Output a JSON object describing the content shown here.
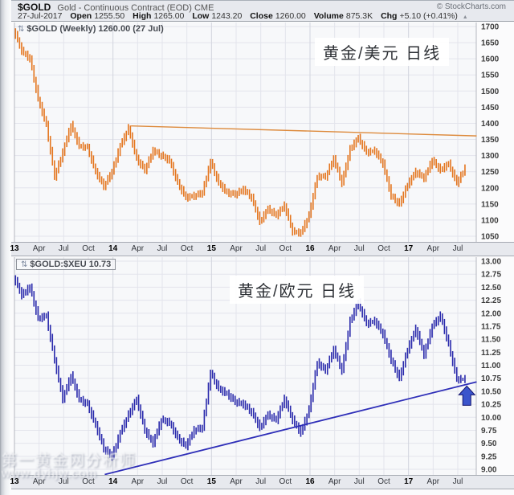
{
  "header": {
    "symbol": "$GOLD",
    "description": "Gold - Continuous Contract (EOD) CME",
    "source": "© StockCharts.com",
    "date": "27-Jul-2017",
    "fields": [
      {
        "label": "Open",
        "value": "1255.50"
      },
      {
        "label": "High",
        "value": "1265.00"
      },
      {
        "label": "Low",
        "value": "1243.20"
      },
      {
        "label": "Close",
        "value": "1260.00"
      },
      {
        "label": "Volume",
        "value": "875.3K"
      },
      {
        "label": "Chg",
        "value": "+5.10 (+0.41%)"
      }
    ],
    "change_direction_icon": "▲"
  },
  "x_axis_labels": [
    "13",
    "Apr",
    "Jul",
    "Oct",
    "14",
    "Apr",
    "Jul",
    "Oct",
    "15",
    "Apr",
    "Jul",
    "Oct",
    "16",
    "Apr",
    "Jul",
    "Oct",
    "17",
    "Apr",
    "Jul"
  ],
  "watermark": {
    "line1": "第一黄金网分析师",
    "line2": "www.dyhjw.com"
  },
  "chart_data": [
    {
      "type": "bar",
      "name": "gold-usd-weekly",
      "label": "$GOLD (Weekly) 1260.00 (27 Jul)",
      "label_icon": "⇅",
      "annotation": "黄金/美元  日线",
      "color": "#e4761f",
      "ylim": [
        1050,
        1700
      ],
      "ystep": 50,
      "decimals": 0,
      "bar_extend": 13,
      "x_start": "2013-01",
      "x_interval": "monthly (approx, read from weekly bars)",
      "monthly_values": [
        1690,
        1625,
        1600,
        1475,
        1395,
        1235,
        1310,
        1395,
        1330,
        1325,
        1250,
        1205,
        1250,
        1330,
        1385,
        1290,
        1255,
        1315,
        1300,
        1285,
        1215,
        1170,
        1175,
        1185,
        1280,
        1215,
        1185,
        1180,
        1195,
        1170,
        1095,
        1135,
        1115,
        1145,
        1065,
        1060,
        1115,
        1235,
        1235,
        1290,
        1215,
        1320,
        1355,
        1310,
        1315,
        1275,
        1175,
        1150,
        1210,
        1250,
        1230,
        1285,
        1255,
        1275,
        1215,
        1260
      ],
      "trendline": {
        "m1": 14.2,
        "v1": 1392,
        "m2": 56.3,
        "v2": 1361,
        "color": "#dd8a3c",
        "width": 1.4
      }
    },
    {
      "type": "bar",
      "name": "gold-eur-ratio",
      "label": "$GOLD:$XEU 10.73",
      "label_icon": "⇅",
      "annotation": "黄金/欧元 日线",
      "color": "#2a2aac",
      "ylim": [
        9.0,
        13.0
      ],
      "ystep": 0.25,
      "decimals": 2,
      "bar_extend": 0.085,
      "x_start": "2013-01",
      "x_interval": "monthly (approx, read from weekly bars)",
      "monthly_values": [
        12.7,
        12.35,
        12.5,
        11.9,
        11.95,
        11.1,
        10.35,
        10.8,
        10.35,
        10.25,
        9.85,
        9.4,
        9.25,
        9.7,
        10.05,
        10.35,
        9.75,
        9.5,
        9.95,
        9.9,
        9.6,
        9.45,
        9.75,
        9.8,
        10.85,
        10.55,
        10.45,
        10.3,
        10.25,
        10.1,
        9.8,
        10.05,
        9.95,
        10.35,
        9.95,
        9.7,
        10.15,
        11.05,
        10.9,
        11.3,
        10.9,
        11.85,
        12.2,
        11.8,
        11.85,
        11.6,
        11.1,
        10.75,
        11.3,
        11.7,
        11.2,
        11.75,
        11.95,
        11.4,
        10.73,
        10.73
      ],
      "trendline": {
        "m1": 11,
        "v1": 8.9,
        "m2": 56.3,
        "v2": 10.68,
        "color": "#2e2eb8",
        "width": 1.8
      },
      "marker": {
        "type": "up-arrow",
        "m": 55.1,
        "tip_value": 10.6,
        "color": "#3b55cc"
      }
    }
  ]
}
